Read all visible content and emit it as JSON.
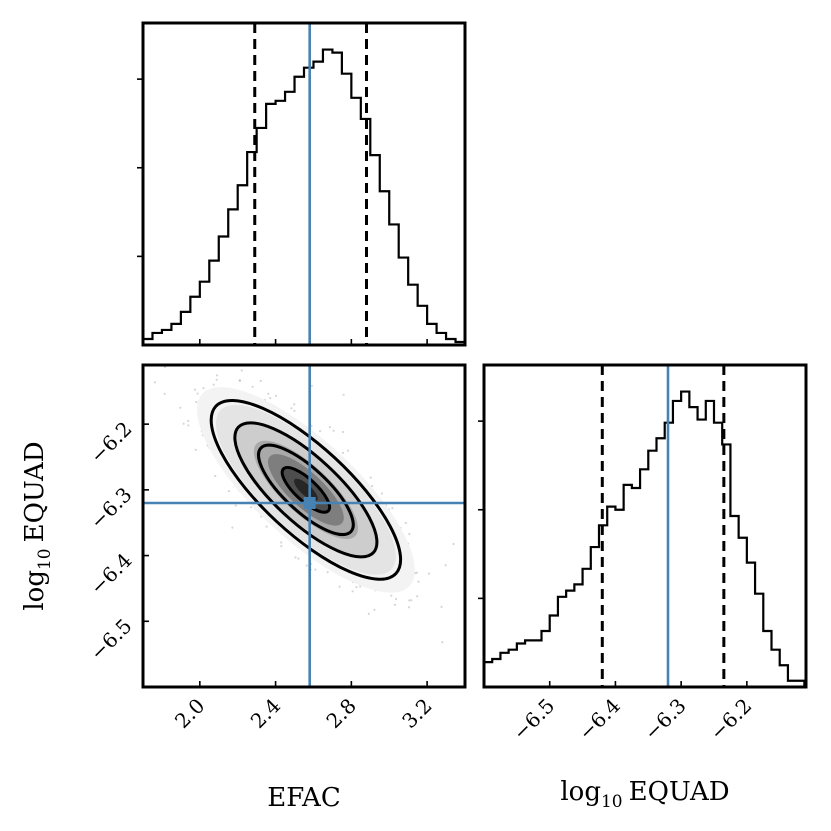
{
  "chart_data": [
    {
      "type": "histogram",
      "panel": "top-left",
      "parameter": "EFAC",
      "xlim": [
        1.7,
        3.4
      ],
      "bin_edges_start": 1.7,
      "bin_width": 0.05,
      "counts": [
        0.02,
        0.04,
        0.05,
        0.07,
        0.11,
        0.16,
        0.21,
        0.28,
        0.36,
        0.45,
        0.53,
        0.64,
        0.72,
        0.8,
        0.81,
        0.84,
        0.89,
        0.92,
        0.94,
        0.98,
        0.97,
        0.9,
        0.82,
        0.75,
        0.63,
        0.51,
        0.4,
        0.29,
        0.2,
        0.13,
        0.07,
        0.04,
        0.02,
        0.01
      ],
      "median": 2.58,
      "quantile_lines": [
        2.29,
        2.88
      ],
      "x_ticks": [
        "2.0",
        "2.4",
        "2.8",
        "3.2"
      ],
      "x_tick_values": [
        2.0,
        2.4,
        2.8,
        3.2
      ]
    },
    {
      "type": "contour-density",
      "panel": "bottom-left",
      "xlabel": "EFAC",
      "ylabel": "log10 EQUAD",
      "xlim": [
        1.7,
        3.4
      ],
      "ylim": [
        -6.6,
        -6.11
      ],
      "truth": {
        "x": 2.58,
        "y": -6.32
      },
      "center": {
        "x": 2.56,
        "y": -6.3
      },
      "sigma_x": 0.25,
      "sigma_y": 0.068,
      "correlation": -0.78,
      "contour_levels_sigma": [
        0.5,
        1.0,
        1.5,
        2.0
      ],
      "x_ticks": [
        "2.0",
        "2.4",
        "2.8",
        "3.2"
      ],
      "x_tick_values": [
        2.0,
        2.4,
        2.8,
        3.2
      ],
      "y_ticks": [
        "−6.2",
        "−6.3",
        "−6.4",
        "−6.5"
      ],
      "y_tick_values": [
        -6.2,
        -6.3,
        -6.4,
        -6.5
      ]
    },
    {
      "type": "histogram",
      "panel": "bottom-right",
      "parameter": "log10 EQUAD",
      "xlim": [
        -6.6,
        -6.11
      ],
      "bin_edges_start": -6.6,
      "bin_width": 0.0125,
      "counts": [
        0.08,
        0.09,
        0.11,
        0.12,
        0.14,
        0.15,
        0.15,
        0.18,
        0.23,
        0.29,
        0.31,
        0.33,
        0.38,
        0.45,
        0.52,
        0.58,
        0.57,
        0.65,
        0.64,
        0.7,
        0.76,
        0.8,
        0.85,
        0.92,
        0.95,
        0.9,
        0.86,
        0.92,
        0.85,
        0.78,
        0.55,
        0.48,
        0.4,
        0.3,
        0.18,
        0.12,
        0.07,
        0.02,
        0.02
      ],
      "median": -6.32,
      "quantile_lines": [
        -6.42,
        -6.235
      ],
      "x_ticks": [
        "−6.5",
        "−6.4",
        "−6.3",
        "−6.2"
      ],
      "x_tick_values": [
        -6.5,
        -6.4,
        -6.3,
        -6.2
      ]
    }
  ],
  "labels": {
    "efac": "EFAC",
    "log_prefix": "log",
    "log_sub": "10",
    "equad": "EQUAD"
  },
  "colors": {
    "truth": "#4682b4",
    "line": "#000000",
    "background": "#ffffff"
  }
}
